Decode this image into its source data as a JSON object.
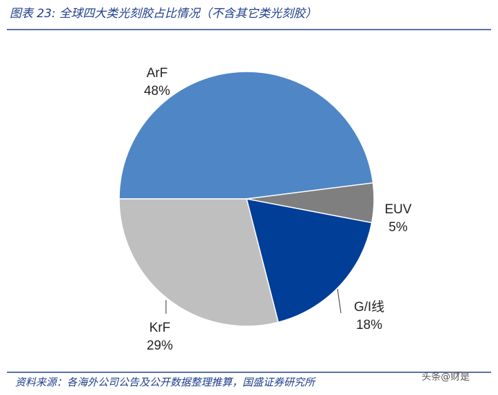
{
  "chart_data": {
    "type": "pie",
    "title": "图表 23: 全球四大类光刻胶占比情况（不含其它类光刻胶）",
    "categories": [
      "ArF",
      "EUV",
      "G/I线",
      "KrF"
    ],
    "values": [
      48,
      5,
      18,
      29
    ],
    "value_labels": [
      "48%",
      "5%",
      "18%",
      "29%"
    ],
    "colors": [
      "#4f86c6",
      "#7f7f7f",
      "#003e97",
      "#bfbfbf"
    ],
    "source": "资料来源：各海外公司公告及公开数据整理推算，国盛证券研究所",
    "watermark": "头条@财是"
  }
}
